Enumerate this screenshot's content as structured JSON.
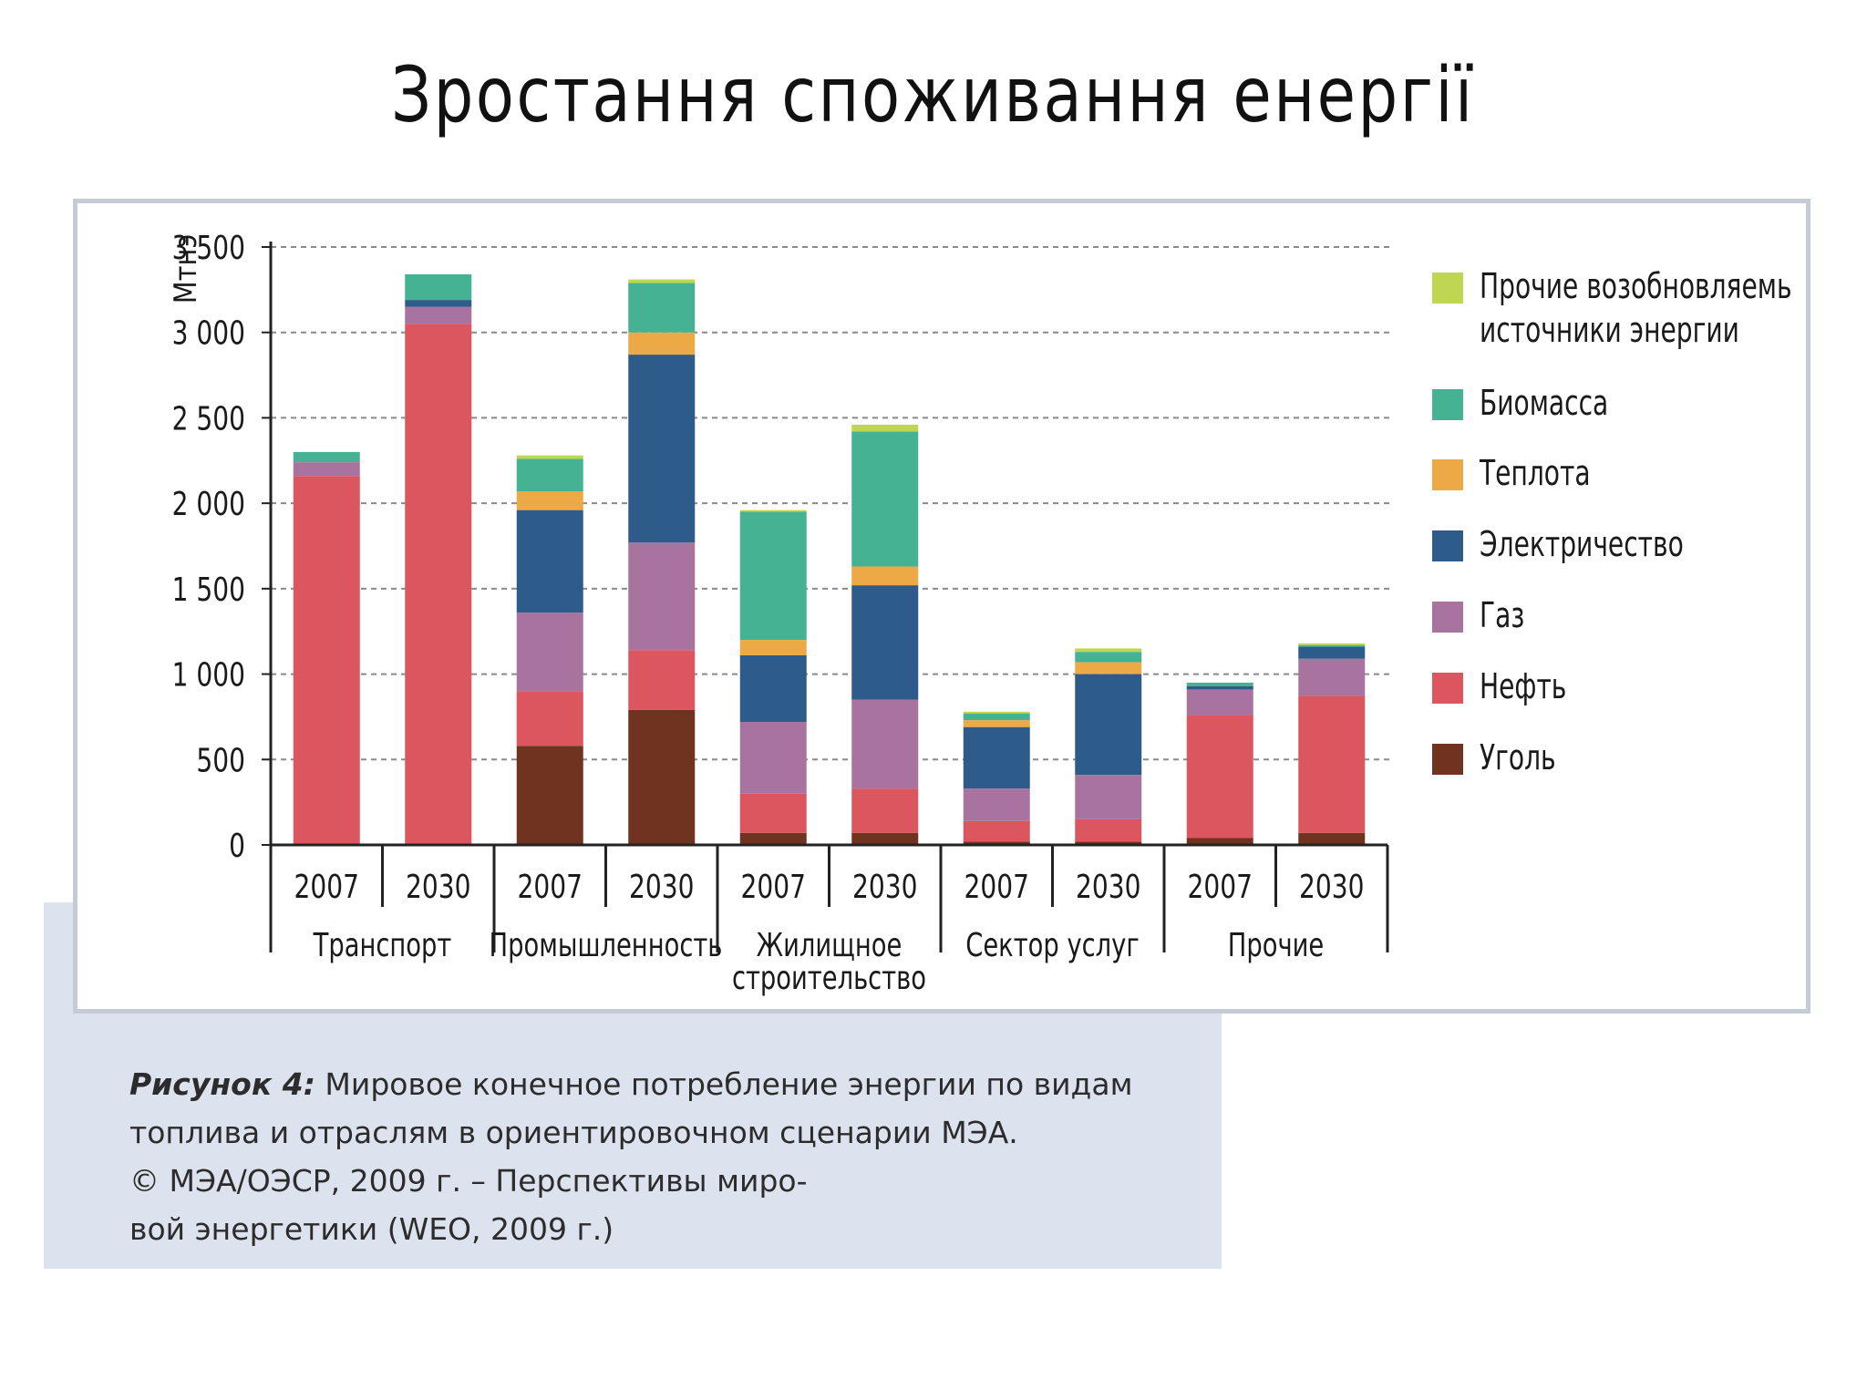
{
  "slide_title": "Зростання споживання енергії",
  "caption": {
    "lead": "Рисунок 4:",
    "line1": "Мировое конечное потребление энергии по видам",
    "line2": "топлива и отраслям в ориентировочном сценарии МЭА.",
    "line3": "© МЭА/ОЭСР, 2009 г. – Перспективы миро-",
    "line4": "вой энергетики (WEO, 2009 г.)"
  },
  "chart_data": {
    "type": "bar",
    "stacked": true,
    "ylabel": "Мтнэ",
    "ylim": [
      0,
      3500
    ],
    "yticks": [
      0,
      500,
      1000,
      1500,
      2000,
      2500,
      3000,
      3500
    ],
    "ytick_labels": [
      "0",
      "500",
      "1 000",
      "1 500",
      "2 000",
      "2 500",
      "3 000",
      "3 500"
    ],
    "grid": "horizontal dashed",
    "legend_position": "right",
    "categories": [
      "2007",
      "2030",
      "2007",
      "2030",
      "2007",
      "2030",
      "2007",
      "2030",
      "2007",
      "2030"
    ],
    "groups": [
      {
        "name": "Транспорт",
        "lines": [
          "Транспорт"
        ]
      },
      {
        "name": "Промышленность",
        "lines": [
          "Промышленность"
        ]
      },
      {
        "name": "Жилищное строительство",
        "lines": [
          "Жилищное",
          "строительство"
        ]
      },
      {
        "name": "Сектор услуг",
        "lines": [
          "Сектор услуг"
        ]
      },
      {
        "name": "Прочие",
        "lines": [
          "Прочие"
        ]
      }
    ],
    "series": [
      {
        "name": "Уголь",
        "color": "#6f3320",
        "values": [
          0,
          0,
          580,
          790,
          70,
          70,
          20,
          20,
          40,
          70
        ]
      },
      {
        "name": "Нефть",
        "color": "#dc5660",
        "values": [
          2160,
          3050,
          320,
          350,
          230,
          260,
          120,
          130,
          720,
          800
        ]
      },
      {
        "name": "Газ",
        "color": "#a8739f",
        "values": [
          80,
          100,
          460,
          630,
          420,
          520,
          190,
          260,
          150,
          220
        ]
      },
      {
        "name": "Электричество",
        "color": "#2d5b8a",
        "values": [
          0,
          40,
          600,
          1100,
          390,
          670,
          360,
          590,
          20,
          70
        ]
      },
      {
        "name": "Теплота",
        "color": "#eca945",
        "values": [
          0,
          0,
          110,
          130,
          90,
          110,
          40,
          70,
          0,
          0
        ]
      },
      {
        "name": "Биомасса",
        "color": "#44b293",
        "values": [
          60,
          150,
          190,
          290,
          750,
          790,
          40,
          60,
          20,
          10
        ]
      },
      {
        "name": "Прочие возобновляемь источники энергии",
        "lines": [
          "Прочие возобновляемь",
          "источники энергии"
        ],
        "color": "#bfd652",
        "values": [
          0,
          0,
          20,
          20,
          10,
          40,
          10,
          20,
          0,
          10
        ]
      }
    ]
  }
}
